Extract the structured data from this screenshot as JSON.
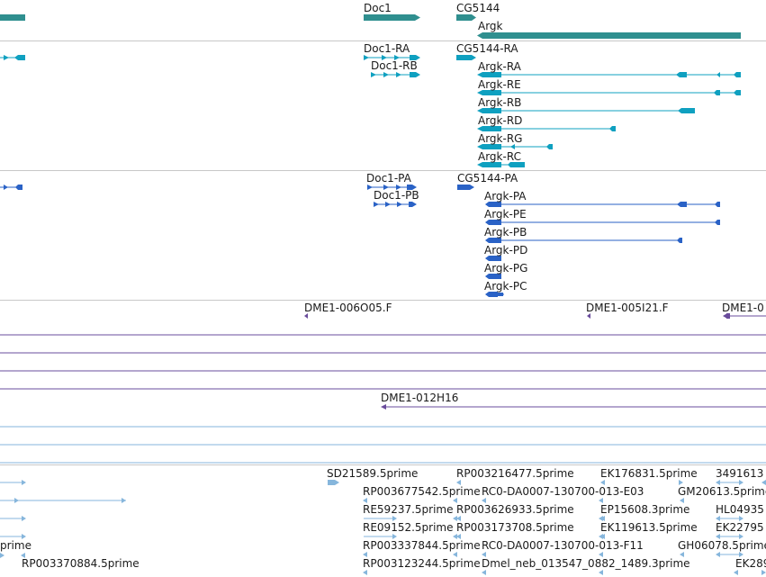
{
  "colors": {
    "gene": "#2f8f8f",
    "transcript_flybase": "#0fa0c0",
    "transcript_dark": "#2a62c6",
    "contig": "#6a4c9c",
    "est": "#86b6dc",
    "divider": "#c8c8c8"
  },
  "genes": {
    "doc1": "Doc1",
    "cg5144": "CG5144",
    "argk": "Argk"
  },
  "tx_a": {
    "doc1_ra": "Doc1-RA",
    "doc1_rb": "Doc1-RB",
    "cg5144_ra": "CG5144-RA",
    "argk_ra": "Argk-RA",
    "argk_re": "Argk-RE",
    "argk_rb": "Argk-RB",
    "argk_rd": "Argk-RD",
    "argk_rg": "Argk-RG",
    "argk_rc": "Argk-RC"
  },
  "tx_b": {
    "doc1_pa": "Doc1-PA",
    "doc1_pb": "Doc1-PB",
    "cg5144_pa": "CG5144-PA",
    "argk_pa": "Argk-PA",
    "argk_pe": "Argk-PE",
    "argk_pb": "Argk-PB",
    "argk_pd": "Argk-PD",
    "argk_pg": "Argk-PG",
    "argk_pc": "Argk-PC"
  },
  "contigs": {
    "c1": "DME1-006O05.F",
    "c2": "DME1-005I21.F",
    "c3": "DME1-0",
    "c4": "DME1-012H16"
  },
  "ests": {
    "e1": "SD21589.5prime",
    "e2": "RP003216477.5prime",
    "e3": "EK176831.5prime",
    "e4": "3491613",
    "e5": "RP003677542.5prime",
    "e6": "RC0-DA0007-130700-013-E03",
    "e7": "GM20613.5prime",
    "e8": "RE59237.5prime",
    "e9": "RP003626933.5prime",
    "e10": "EP15608.3prime",
    "e11": "HL04935",
    "e12": "RE09152.5prime",
    "e13": "RP003173708.5prime",
    "e14": "EK119613.5prime",
    "e15": "EK22795",
    "e16": "prime",
    "e17": "RP003337844.5prime",
    "e18": "RC0-DA0007-130700-013-F11",
    "e19": "GH06078.5prime",
    "e20": "RP003370884.5prime",
    "e21": "RP003123244.5prime",
    "e22": "Dmel_neb_013547_0882_1489.3prime",
    "e23": "EK289"
  }
}
